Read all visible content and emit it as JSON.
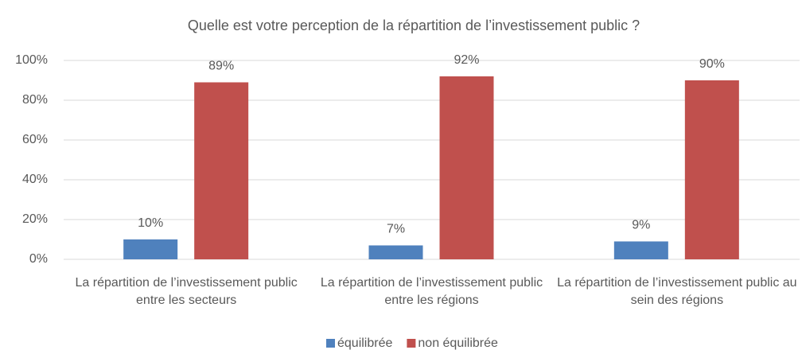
{
  "chart_data": {
    "type": "bar",
    "title": "Quelle est votre perception de la répartition de l’investissement public ?",
    "categories": [
      "La répartition de l’investissement public entre les secteurs",
      "La répartition de l’investissement public entre les régions",
      "La répartition de l’investissement public au sein des régions"
    ],
    "series": [
      {
        "name": "équilibrée",
        "color": "#4f81bd",
        "values": [
          10,
          7,
          9
        ],
        "value_labels": [
          "10%",
          "7%",
          "9%"
        ]
      },
      {
        "name": "non équilibrée",
        "color": "#c0504d",
        "values": [
          89,
          92,
          90
        ],
        "value_labels": [
          "89%",
          "92%",
          "90%"
        ]
      }
    ],
    "ylim": [
      0,
      100
    ],
    "yticks": [
      {
        "value": 0,
        "label": "0%"
      },
      {
        "value": 20,
        "label": "20%"
      },
      {
        "value": 40,
        "label": "40%"
      },
      {
        "value": 60,
        "label": "60%"
      },
      {
        "value": 80,
        "label": "80%"
      },
      {
        "value": 100,
        "label": "100%"
      }
    ],
    "grid": true,
    "legend": "bottom"
  }
}
